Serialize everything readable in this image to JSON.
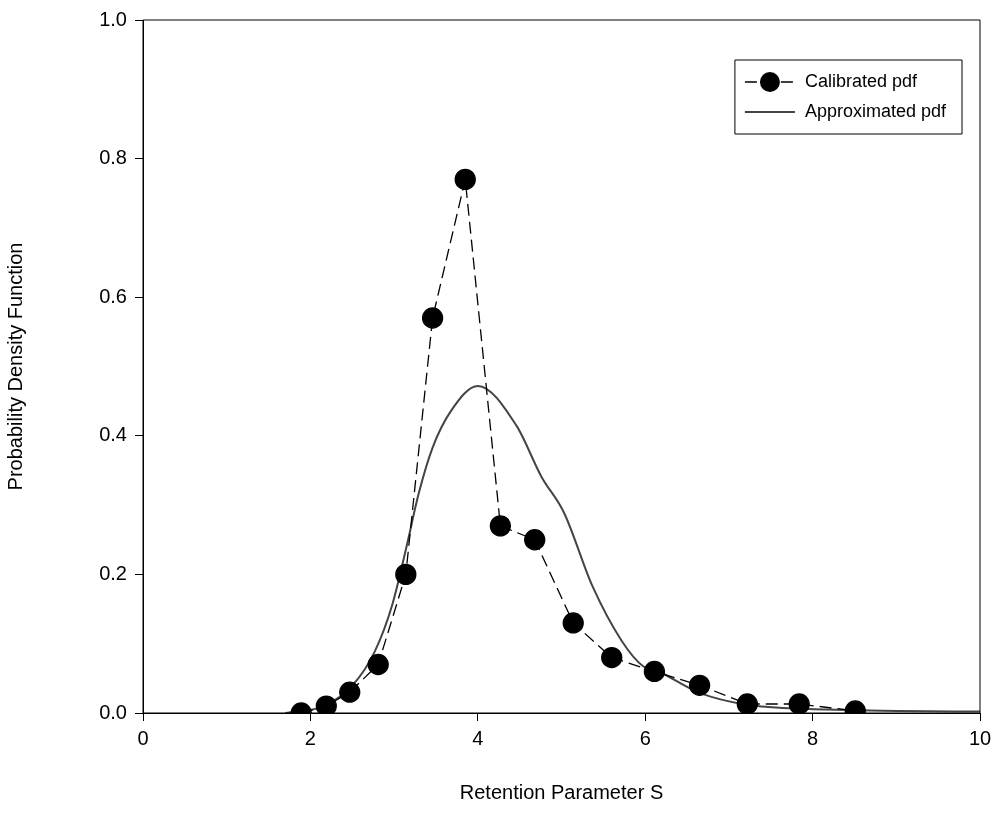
{
  "chart_data": {
    "type": "line",
    "xlabel": "Retention Parameter S",
    "ylabel": "Probability Density Function",
    "xlim": [
      0,
      10
    ],
    "xticks": [
      0,
      2,
      4,
      6,
      8,
      10
    ],
    "ylim": [
      0,
      1
    ],
    "yticks": [
      {
        "value": 0,
        "label": "0.0"
      },
      0.2,
      0.4,
      0.6,
      0.8,
      {
        "value": 1,
        "label": "1.0"
      }
    ],
    "legend": "top right",
    "grid": false,
    "series": [
      {
        "name": "Calibrated pdf",
        "color": "#000000",
        "marker": "circle",
        "line_style": "dashed",
        "x": [
          1.89,
          2.19,
          2.47,
          2.81,
          3.14,
          3.46,
          3.85,
          4.27,
          4.68,
          5.14,
          5.6,
          6.11,
          6.65,
          7.22,
          7.84,
          8.51
        ],
        "values": [
          0.0,
          0.01,
          0.03,
          0.07,
          0.2,
          0.57,
          0.77,
          0.27,
          0.25,
          0.13,
          0.08,
          0.06,
          0.04,
          0.013,
          0.013,
          0.003
        ]
      },
      {
        "name": "Approximated pdf",
        "color": "#444444",
        "marker": "none",
        "line_style": "solid",
        "x": [
          1.7,
          2.16,
          2.51,
          2.77,
          2.98,
          3.16,
          3.29,
          3.46,
          3.68,
          4.0,
          4.46,
          4.76,
          5.03,
          5.37,
          5.72,
          5.98,
          6.12,
          6.65,
          7.21,
          8.17,
          10
        ],
        "values": [
          0.0,
          0.01,
          0.041,
          0.089,
          0.157,
          0.246,
          0.315,
          0.383,
          0.436,
          0.472,
          0.415,
          0.341,
          0.289,
          0.183,
          0.104,
          0.067,
          0.062,
          0.029,
          0.012,
          0.005,
          0.002
        ]
      }
    ]
  }
}
